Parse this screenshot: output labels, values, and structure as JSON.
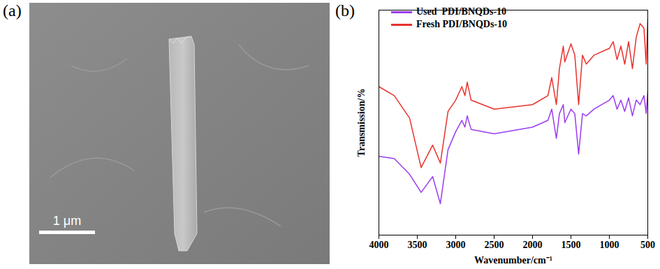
{
  "image_panel": {
    "label": "(a)",
    "scale_bar_label": "1 μm"
  },
  "chart_data": {
    "type": "line",
    "title": "(b)",
    "x_label": "Wavenumber/cm⁻¹",
    "y_label": "Transmission/%",
    "x": [
      4000,
      3800,
      3600,
      3450,
      3300,
      3200,
      3100,
      3000,
      2920,
      2880,
      2850,
      2800,
      2500,
      2000,
      1800,
      1750,
      1690,
      1650,
      1600,
      1580,
      1500,
      1450,
      1400,
      1350,
      1300,
      1200,
      1000,
      950,
      900,
      850,
      800,
      750,
      700,
      650,
      600,
      550,
      520,
      500
    ],
    "series": [
      {
        "name": "Used  PDI/BNQDs-10",
        "color": "#9b3cf0",
        "values": [
          35,
          34,
          27,
          19,
          26,
          14,
          38,
          46,
          51,
          48,
          53,
          47,
          45,
          48,
          51,
          56,
          43,
          54,
          58,
          50,
          56,
          54,
          36,
          54,
          53,
          56,
          60,
          62,
          56,
          60,
          55,
          61,
          53,
          60,
          58,
          62,
          54,
          64
        ]
      },
      {
        "name": "Fresh PDI/BNQDs-10",
        "color": "#e8322c",
        "values": [
          66,
          62,
          52,
          30,
          40,
          32,
          55,
          60,
          66,
          62,
          68,
          60,
          56,
          58,
          62,
          70,
          58,
          74,
          84,
          77,
          85,
          80,
          58,
          80,
          76,
          80,
          83,
          86,
          78,
          84,
          76,
          86,
          74,
          88,
          94,
          92,
          76,
          96
        ]
      }
    ],
    "xlim": [
      4000,
      500
    ],
    "xticks": [
      4000,
      3500,
      3000,
      2500,
      2000,
      1500,
      1000,
      500
    ],
    "ylim": [
      0,
      100
    ],
    "yticks": [],
    "tick_labels": "x",
    "legend": "top-left",
    "grid": false
  }
}
